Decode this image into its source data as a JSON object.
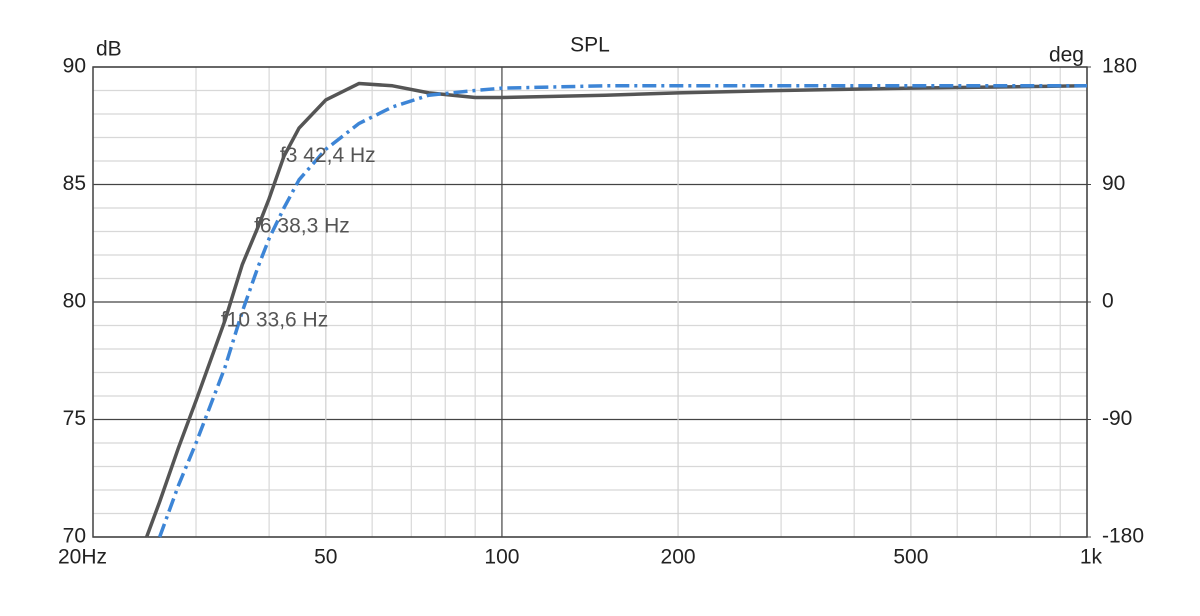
{
  "chart_data": {
    "type": "line",
    "title": "SPL",
    "ylabel": "dB",
    "y2label": "deg",
    "xscale": "log",
    "x": [
      24.7,
      26,
      28,
      30,
      33.6,
      36,
      38.3,
      40,
      42.4,
      45,
      50,
      57,
      65,
      75,
      90,
      100,
      150,
      200,
      300,
      500,
      1000
    ],
    "series": [
      {
        "color": "#555555",
        "style": "solid",
        "values": [
          70,
          71.5,
          73.8,
          75.8,
          79.2,
          81.6,
          83.2,
          84.4,
          86.2,
          87.4,
          88.6,
          89.3,
          89.2,
          88.9,
          88.7,
          88.7,
          88.8,
          88.9,
          89.0,
          89.1,
          89.2
        ]
      },
      {
        "color": "#3d85d6",
        "style": "dashdot",
        "values": [
          null,
          70,
          72.2,
          74.0,
          77.2,
          79.6,
          81.5,
          82.7,
          84.0,
          85.2,
          86.5,
          87.6,
          88.3,
          88.8,
          89.0,
          89.1,
          89.2,
          89.2,
          89.2,
          89.2,
          89.2
        ]
      }
    ],
    "xlim": [
      20,
      1000
    ],
    "xticks": [
      {
        "value": 20,
        "label": "20Hz"
      },
      50,
      100,
      200,
      500,
      {
        "value": 1000,
        "label": "1k"
      }
    ],
    "xminor": [
      30,
      40,
      60,
      70,
      80,
      90,
      300,
      400,
      600,
      700,
      800,
      900
    ],
    "ylim": [
      70,
      90
    ],
    "yticks": [
      70,
      75,
      80,
      85,
      90
    ],
    "yminor": [
      71,
      72,
      73,
      74,
      76,
      77,
      78,
      79,
      81,
      82,
      83,
      84,
      86,
      87,
      88,
      89
    ],
    "y2lim": [
      -180,
      180
    ],
    "y2ticks": [
      -180,
      -90,
      0,
      90,
      180
    ],
    "grid": true,
    "annotations": [
      {
        "text": "f3 42,4 Hz",
        "x": 42.4,
        "y": 86.2
      },
      {
        "text": "f6 38,3 Hz",
        "x": 38.3,
        "y": 83.2
      },
      {
        "text": "f10 33,6 Hz",
        "x": 33.6,
        "y": 79.2
      }
    ]
  }
}
